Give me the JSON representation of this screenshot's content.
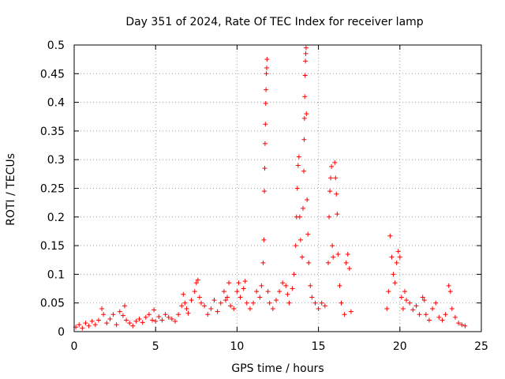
{
  "chart_data": {
    "type": "scatter",
    "title": "Day 351 of 2024, Rate Of TEC Index for receiver lamp",
    "xlabel": "GPS time / hours",
    "ylabel": "ROTI / TECUs",
    "xlim": [
      0,
      25
    ],
    "ylim": [
      0,
      0.5
    ],
    "xticks": [
      "0",
      "5",
      "10",
      "15",
      "20",
      "25"
    ],
    "yticks": [
      "0",
      "0.05",
      "0.1",
      "0.15",
      "0.2",
      "0.25",
      "0.3",
      "0.35",
      "0.4",
      "0.45",
      "0.5"
    ],
    "grid": true,
    "marker": "plus",
    "color": "#ff0000",
    "series": [
      {
        "name": "ROTI",
        "points": [
          [
            0.1,
            0.008
          ],
          [
            0.3,
            0.012
          ],
          [
            0.5,
            0.006
          ],
          [
            0.7,
            0.015
          ],
          [
            0.9,
            0.01
          ],
          [
            1.1,
            0.018
          ],
          [
            1.3,
            0.012
          ],
          [
            1.5,
            0.02
          ],
          [
            1.7,
            0.04
          ],
          [
            1.8,
            0.03
          ],
          [
            2.0,
            0.015
          ],
          [
            2.2,
            0.022
          ],
          [
            2.4,
            0.03
          ],
          [
            2.6,
            0.012
          ],
          [
            2.8,
            0.035
          ],
          [
            3.0,
            0.028
          ],
          [
            3.1,
            0.045
          ],
          [
            3.2,
            0.02
          ],
          [
            3.4,
            0.015
          ],
          [
            3.6,
            0.01
          ],
          [
            3.8,
            0.018
          ],
          [
            4.0,
            0.022
          ],
          [
            4.2,
            0.016
          ],
          [
            4.4,
            0.025
          ],
          [
            4.6,
            0.03
          ],
          [
            4.8,
            0.02
          ],
          [
            4.9,
            0.038
          ],
          [
            5.0,
            0.018
          ],
          [
            5.2,
            0.026
          ],
          [
            5.4,
            0.02
          ],
          [
            5.6,
            0.03
          ],
          [
            5.8,
            0.025
          ],
          [
            6.0,
            0.022
          ],
          [
            6.2,
            0.018
          ],
          [
            6.4,
            0.03
          ],
          [
            6.6,
            0.045
          ],
          [
            6.7,
            0.065
          ],
          [
            6.8,
            0.05
          ],
          [
            6.9,
            0.04
          ],
          [
            7.0,
            0.032
          ],
          [
            7.2,
            0.055
          ],
          [
            7.4,
            0.07
          ],
          [
            7.5,
            0.085
          ],
          [
            7.6,
            0.09
          ],
          [
            7.7,
            0.06
          ],
          [
            7.8,
            0.05
          ],
          [
            8.0,
            0.045
          ],
          [
            8.2,
            0.03
          ],
          [
            8.4,
            0.04
          ],
          [
            8.6,
            0.055
          ],
          [
            8.8,
            0.035
          ],
          [
            9.0,
            0.05
          ],
          [
            9.2,
            0.07
          ],
          [
            9.3,
            0.055
          ],
          [
            9.4,
            0.06
          ],
          [
            9.5,
            0.085
          ],
          [
            9.6,
            0.045
          ],
          [
            9.8,
            0.04
          ],
          [
            10.0,
            0.07
          ],
          [
            10.1,
            0.085
          ],
          [
            10.2,
            0.06
          ],
          [
            10.4,
            0.075
          ],
          [
            10.5,
            0.088
          ],
          [
            10.6,
            0.05
          ],
          [
            10.8,
            0.04
          ],
          [
            11.0,
            0.05
          ],
          [
            11.2,
            0.07
          ],
          [
            11.4,
            0.06
          ],
          [
            11.5,
            0.08
          ],
          [
            11.6,
            0.12
          ],
          [
            11.65,
            0.16
          ],
          [
            11.68,
            0.245
          ],
          [
            11.7,
            0.285
          ],
          [
            11.72,
            0.328
          ],
          [
            11.74,
            0.362
          ],
          [
            11.76,
            0.398
          ],
          [
            11.78,
            0.422
          ],
          [
            11.8,
            0.45
          ],
          [
            11.82,
            0.46
          ],
          [
            11.84,
            0.475
          ],
          [
            11.9,
            0.07
          ],
          [
            12.0,
            0.05
          ],
          [
            12.2,
            0.04
          ],
          [
            12.4,
            0.055
          ],
          [
            12.6,
            0.07
          ],
          [
            12.8,
            0.085
          ],
          [
            13.0,
            0.08
          ],
          [
            13.1,
            0.065
          ],
          [
            13.2,
            0.05
          ],
          [
            13.4,
            0.075
          ],
          [
            13.5,
            0.1
          ],
          [
            13.6,
            0.15
          ],
          [
            13.65,
            0.2
          ],
          [
            13.7,
            0.25
          ],
          [
            13.75,
            0.29
          ],
          [
            13.8,
            0.305
          ],
          [
            13.85,
            0.2
          ],
          [
            13.9,
            0.16
          ],
          [
            14.0,
            0.13
          ],
          [
            14.05,
            0.215
          ],
          [
            14.1,
            0.28
          ],
          [
            14.12,
            0.335
          ],
          [
            14.14,
            0.372
          ],
          [
            14.16,
            0.41
          ],
          [
            14.18,
            0.447
          ],
          [
            14.2,
            0.472
          ],
          [
            14.22,
            0.485
          ],
          [
            14.24,
            0.495
          ],
          [
            14.26,
            0.38
          ],
          [
            14.3,
            0.23
          ],
          [
            14.35,
            0.17
          ],
          [
            14.4,
            0.12
          ],
          [
            14.5,
            0.08
          ],
          [
            14.6,
            0.06
          ],
          [
            14.8,
            0.05
          ],
          [
            15.0,
            0.04
          ],
          [
            15.2,
            0.05
          ],
          [
            15.4,
            0.045
          ],
          [
            15.6,
            0.12
          ],
          [
            15.65,
            0.2
          ],
          [
            15.7,
            0.245
          ],
          [
            15.75,
            0.268
          ],
          [
            15.8,
            0.288
          ],
          [
            15.85,
            0.15
          ],
          [
            15.9,
            0.13
          ],
          [
            16.0,
            0.295
          ],
          [
            16.05,
            0.268
          ],
          [
            16.1,
            0.24
          ],
          [
            16.15,
            0.205
          ],
          [
            16.2,
            0.135
          ],
          [
            16.3,
            0.08
          ],
          [
            16.4,
            0.05
          ],
          [
            16.6,
            0.03
          ],
          [
            16.7,
            0.12
          ],
          [
            16.8,
            0.135
          ],
          [
            16.9,
            0.11
          ],
          [
            17.0,
            0.035
          ],
          [
            19.2,
            0.04
          ],
          [
            19.3,
            0.07
          ],
          [
            19.4,
            0.167
          ],
          [
            19.5,
            0.13
          ],
          [
            19.6,
            0.1
          ],
          [
            19.7,
            0.085
          ],
          [
            19.8,
            0.12
          ],
          [
            19.9,
            0.14
          ],
          [
            20.0,
            0.13
          ],
          [
            20.1,
            0.06
          ],
          [
            20.2,
            0.04
          ],
          [
            20.3,
            0.07
          ],
          [
            20.4,
            0.055
          ],
          [
            20.6,
            0.05
          ],
          [
            20.8,
            0.038
          ],
          [
            21.0,
            0.045
          ],
          [
            21.2,
            0.03
          ],
          [
            21.4,
            0.06
          ],
          [
            21.5,
            0.055
          ],
          [
            21.6,
            0.03
          ],
          [
            21.8,
            0.02
          ],
          [
            22.0,
            0.04
          ],
          [
            22.2,
            0.05
          ],
          [
            22.4,
            0.025
          ],
          [
            22.6,
            0.02
          ],
          [
            22.8,
            0.03
          ],
          [
            23.0,
            0.08
          ],
          [
            23.1,
            0.07
          ],
          [
            23.2,
            0.04
          ],
          [
            23.4,
            0.025
          ],
          [
            23.6,
            0.015
          ],
          [
            23.8,
            0.012
          ],
          [
            24.0,
            0.01
          ]
        ]
      }
    ]
  }
}
